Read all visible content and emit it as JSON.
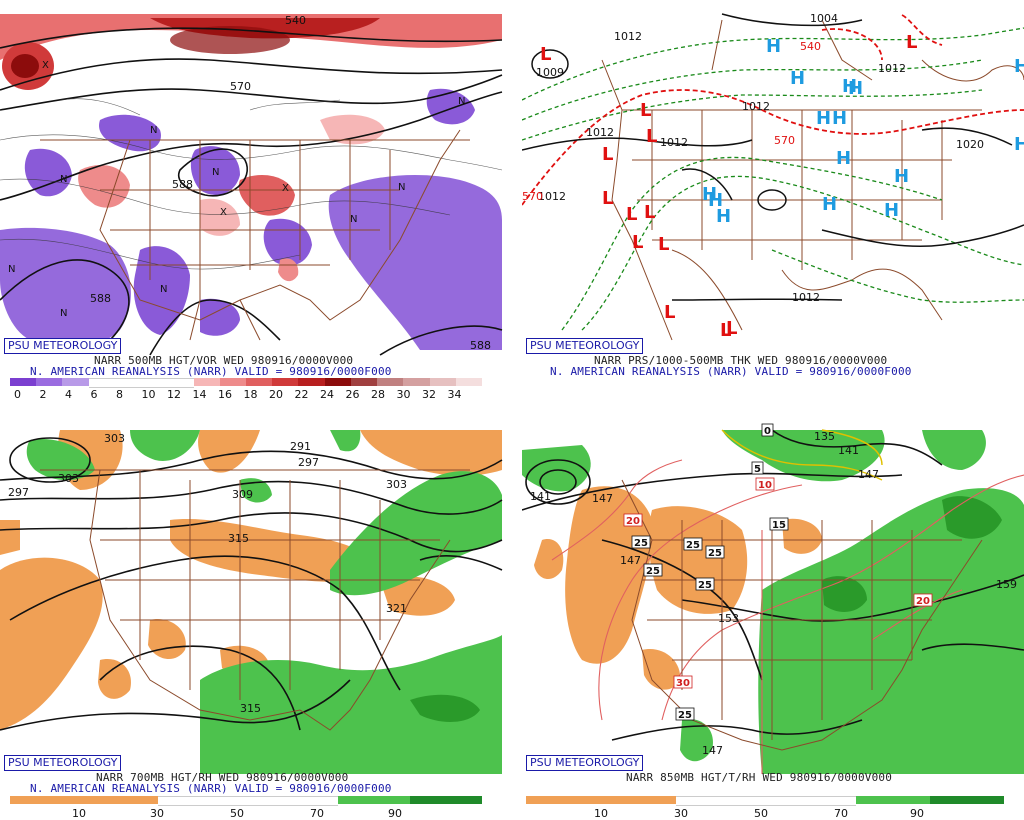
{
  "panels": {
    "p1": {
      "stamp": "PSU METEOROLOGY",
      "caption1": "NARR 500MB HGT/VOR WED 980916/0000V000",
      "caption2": "N. AMERICAN REANALYSIS (NARR) VALID = 980916/0000F000",
      "contour_labels": [
        "540",
        "570",
        "588",
        "588",
        "588"
      ],
      "colorbar": {
        "ticks": [
          "0",
          "2",
          "4",
          "6",
          "8",
          "10",
          "12",
          "14",
          "16",
          "18",
          "20",
          "22",
          "24",
          "26",
          "28",
          "30",
          "32",
          "34"
        ],
        "colors": [
          "#7b3fd0",
          "#9a6ce0",
          "#b89ae8",
          "#ffffff",
          "#ffffff",
          "#ffffff",
          "#ffffff",
          "#f6b6b6",
          "#ee8b8b",
          "#e05f5f",
          "#d03a3a",
          "#b81f1f",
          "#8c0c0c",
          "#a04040",
          "#c08080",
          "#d4a0a0",
          "#e6c0c0",
          "#f4dede"
        ]
      }
    },
    "p2": {
      "stamp": "PSU METEOROLOGY",
      "caption1": "NARR PRS/1000-500MB THK WED 980916/0000V000",
      "caption2": "N. AMERICAN REANALYSIS (NARR) VALID = 980916/0000F000",
      "labels": [
        "1004",
        "1012",
        "1009",
        "1012",
        "1012",
        "1012",
        "1012",
        "1020",
        "1012",
        "1012",
        "540",
        "570",
        "570"
      ],
      "lows": [
        "L",
        "L",
        "L",
        "L",
        "L",
        "L",
        "L",
        "L",
        "L",
        "L",
        "L",
        "L",
        "L"
      ],
      "highs": [
        "H",
        "H",
        "H",
        "H",
        "H",
        "H",
        "H",
        "H",
        "H",
        "H",
        "H",
        "H",
        "H",
        "H",
        "H"
      ]
    },
    "p3": {
      "stamp": "PSU METEOROLOGY",
      "caption1": "NARR 700MB HGT/RH WED 980916/0000V000",
      "caption2": "N. AMERICAN REANALYSIS (NARR) VALID = 980916/0000F000",
      "contour_labels": [
        "303",
        "297",
        "303",
        "291",
        "297",
        "309",
        "303",
        "315",
        "321",
        "315"
      ],
      "colorbar": {
        "ticks": [
          "10",
          "30",
          "50",
          "70",
          "90"
        ]
      }
    },
    "p4": {
      "stamp": "PSU METEOROLOGY",
      "caption1": "NARR 850MB HGT/T/RH WED 980916/0000V000",
      "caption2": "",
      "contour_labels": [
        "141",
        "147",
        "147",
        "135",
        "141",
        "147",
        "153",
        "147",
        "159"
      ],
      "temp_labels": [
        "5",
        "10",
        "15",
        "20",
        "25",
        "25",
        "25",
        "25",
        "25",
        "30",
        "25",
        "20",
        "0"
      ],
      "colorbar": {
        "ticks": [
          "10",
          "30",
          "50",
          "70",
          "90"
        ]
      }
    }
  },
  "colors": {
    "rh_dry": "#f0a055",
    "rh_moist": "#4dc24d",
    "vort_neg": "#8a5ad8",
    "vort_pos": "#e0505a",
    "state_lines": "#8b4a2b",
    "low_red": "#e01010",
    "high_blue": "#1e9be0"
  }
}
